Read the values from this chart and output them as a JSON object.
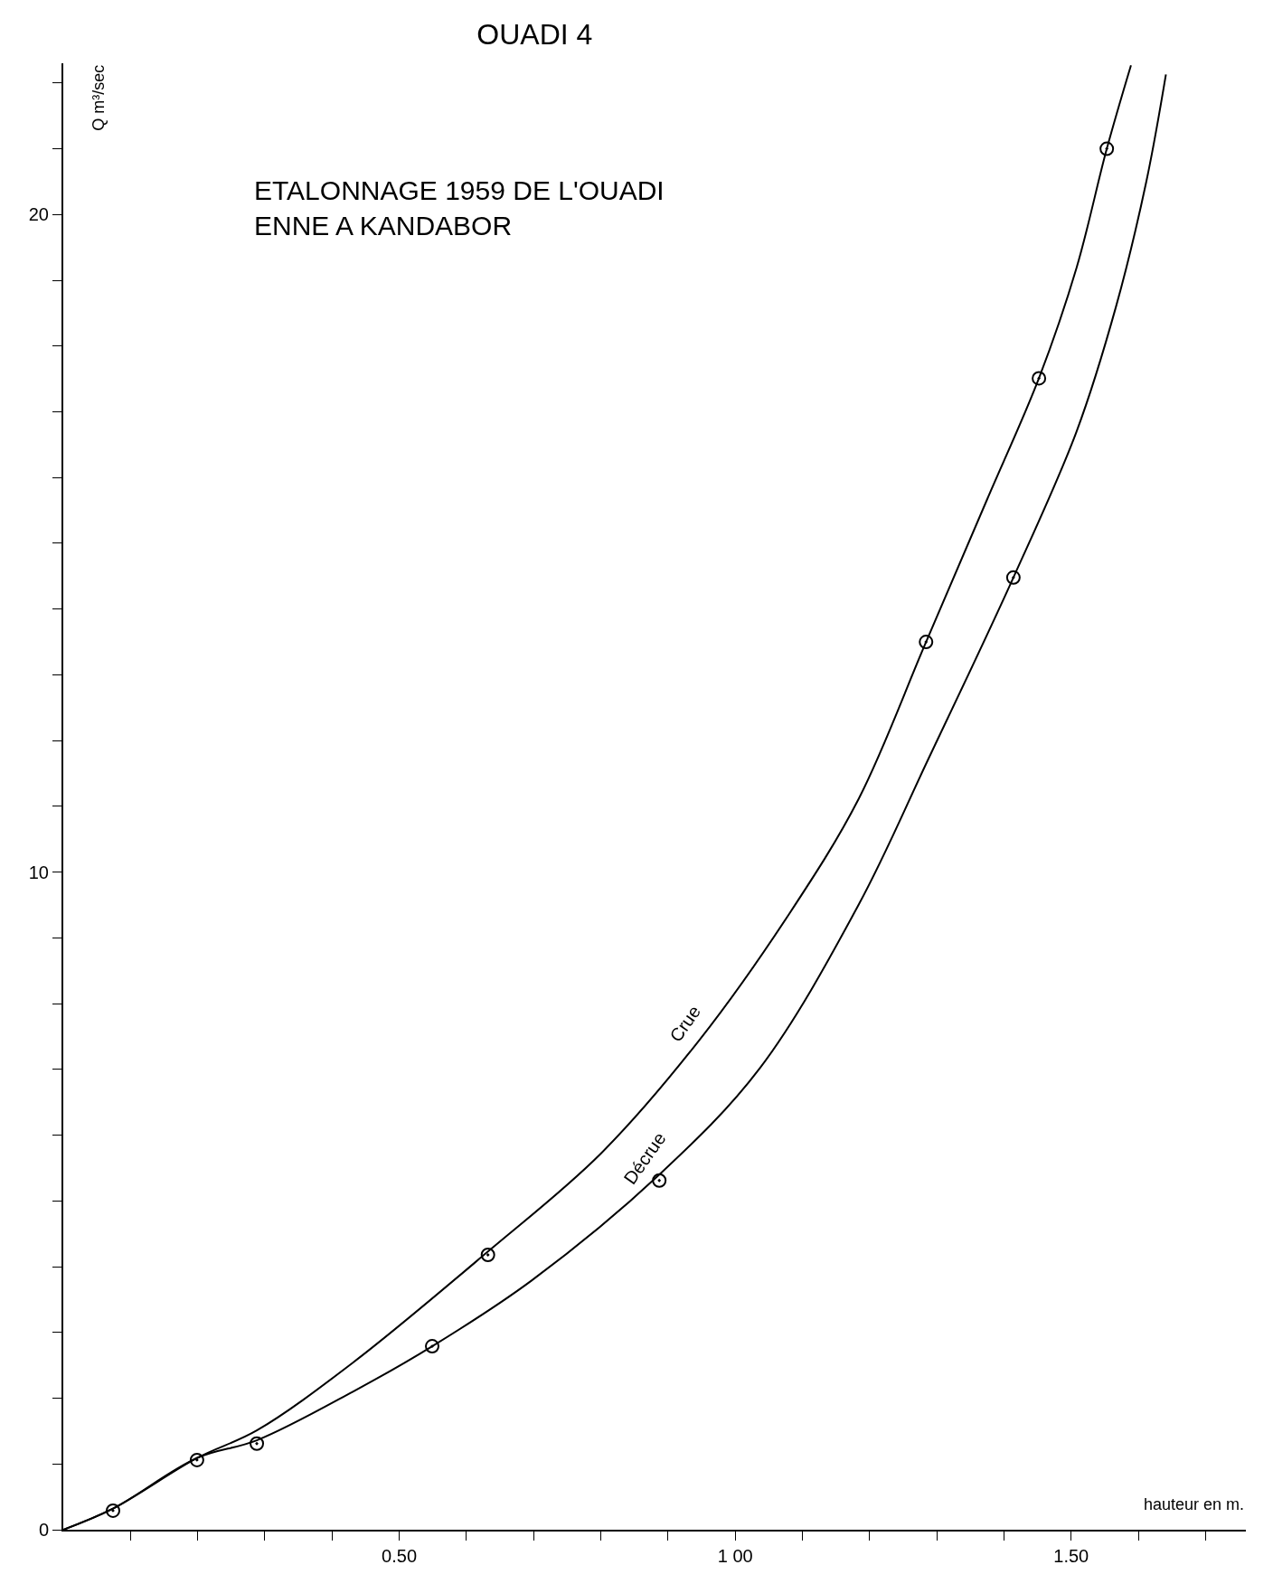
{
  "chart_data": {
    "type": "line",
    "title": "OUADI 4",
    "subtitle": "ETALONNAGE 1959 DE L'OUADI\nENNE A KANDABOR",
    "xlabel": "hauteur en m.",
    "ylabel": "Q m³/sec",
    "xlim": [
      0,
      1.76
    ],
    "ylim": [
      0,
      22.3
    ],
    "xticks": [
      {
        "value": 0.1,
        "label": null
      },
      {
        "value": 0.2,
        "label": null
      },
      {
        "value": 0.3,
        "label": null
      },
      {
        "value": 0.4,
        "label": null
      },
      {
        "value": 0.5,
        "label": "0.50"
      },
      {
        "value": 0.6,
        "label": null
      },
      {
        "value": 0.7,
        "label": null
      },
      {
        "value": 0.8,
        "label": null
      },
      {
        "value": 0.9,
        "label": null
      },
      {
        "value": 1.0,
        "label": "1 00"
      },
      {
        "value": 1.1,
        "label": null
      },
      {
        "value": 1.2,
        "label": null
      },
      {
        "value": 1.3,
        "label": null
      },
      {
        "value": 1.4,
        "label": null
      },
      {
        "value": 1.5,
        "label": "1.50"
      },
      {
        "value": 1.6,
        "label": null
      },
      {
        "value": 1.7,
        "label": null
      }
    ],
    "yticks": [
      0,
      {
        "value": 1,
        "label": null
      },
      {
        "value": 2,
        "label": null
      },
      {
        "value": 3,
        "label": null
      },
      {
        "value": 4,
        "label": null
      },
      {
        "value": 5,
        "label": null
      },
      {
        "value": 6,
        "label": null
      },
      {
        "value": 7,
        "label": null
      },
      {
        "value": 8,
        "label": null
      },
      {
        "value": 9,
        "label": null
      },
      10,
      {
        "value": 11,
        "label": null
      },
      {
        "value": 12,
        "label": null
      },
      {
        "value": 13,
        "label": null
      },
      {
        "value": 14,
        "label": null
      },
      {
        "value": 15,
        "label": null
      },
      {
        "value": 16,
        "label": null
      },
      {
        "value": 17,
        "label": null
      },
      {
        "value": 18,
        "label": null
      },
      {
        "value": 19,
        "label": null
      },
      20,
      {
        "value": 21,
        "label": null
      },
      {
        "value": 22,
        "label": null
      }
    ],
    "grid": false,
    "legend": false,
    "series": [
      {
        "name": "Crue",
        "color": "#000000",
        "x": [
          0,
          0.074,
          0.199,
          0.288,
          0.431,
          0.632,
          0.8,
          0.947,
          1.08,
          1.184,
          1.284,
          1.375,
          1.452,
          1.508,
          1.553,
          1.589
        ],
        "values": [
          0,
          0.32,
          1.09,
          1.51,
          2.54,
          4.23,
          5.72,
          7.45,
          9.36,
          11.12,
          13.5,
          15.67,
          17.51,
          19.19,
          21.0,
          22.27
        ]
      },
      {
        "name": "Décrue",
        "color": "#000000",
        "x": [
          0,
          0.074,
          0.199,
          0.288,
          0.431,
          0.549,
          0.697,
          0.887,
          1.036,
          1.184,
          1.287,
          1.414,
          1.508,
          1.567,
          1.612,
          1.641
        ],
        "values": [
          0,
          0.32,
          1.09,
          1.36,
          2.1,
          2.79,
          3.79,
          5.4,
          7.01,
          9.51,
          11.71,
          14.48,
          16.7,
          18.61,
          20.51,
          22.13
        ]
      },
      {
        "type": "scatter",
        "marker": "circle",
        "color": "#000000",
        "x": [
          0.074,
          0.199,
          0.288,
          0.549,
          0.632,
          0.887,
          1.284,
          1.414,
          1.452,
          1.553
        ],
        "values": [
          0.29,
          1.06,
          1.31,
          2.79,
          4.18,
          5.31,
          13.5,
          14.48,
          17.51,
          21.0
        ]
      }
    ]
  }
}
